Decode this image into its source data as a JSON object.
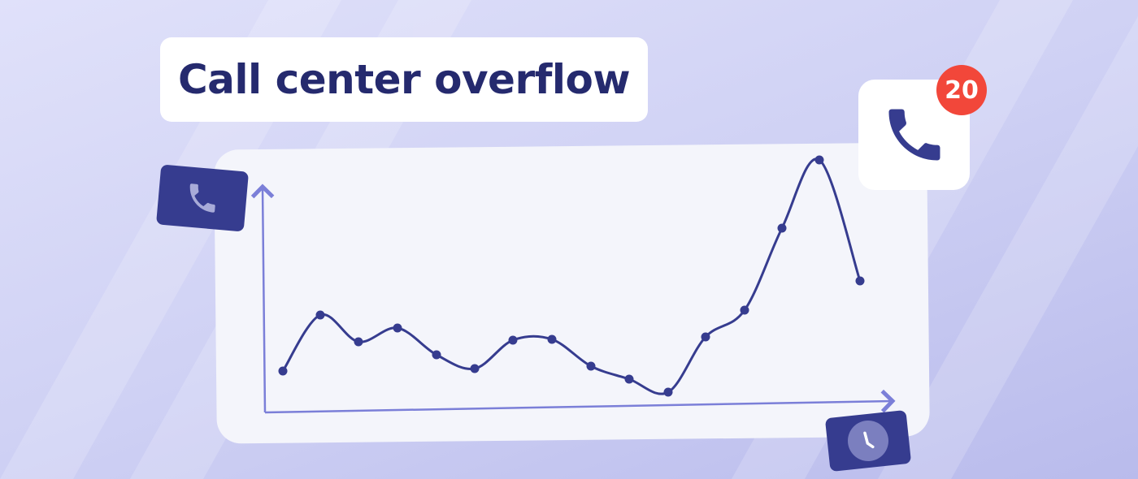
{
  "title": "Call center overflow",
  "notification_badge": "20",
  "icons": [
    "phone-icon",
    "clock-icon"
  ],
  "colors": {
    "accent": "#363c8f",
    "badge": "#f2473a",
    "title": "#252a6e",
    "axis": "#7b7fd8"
  }
}
